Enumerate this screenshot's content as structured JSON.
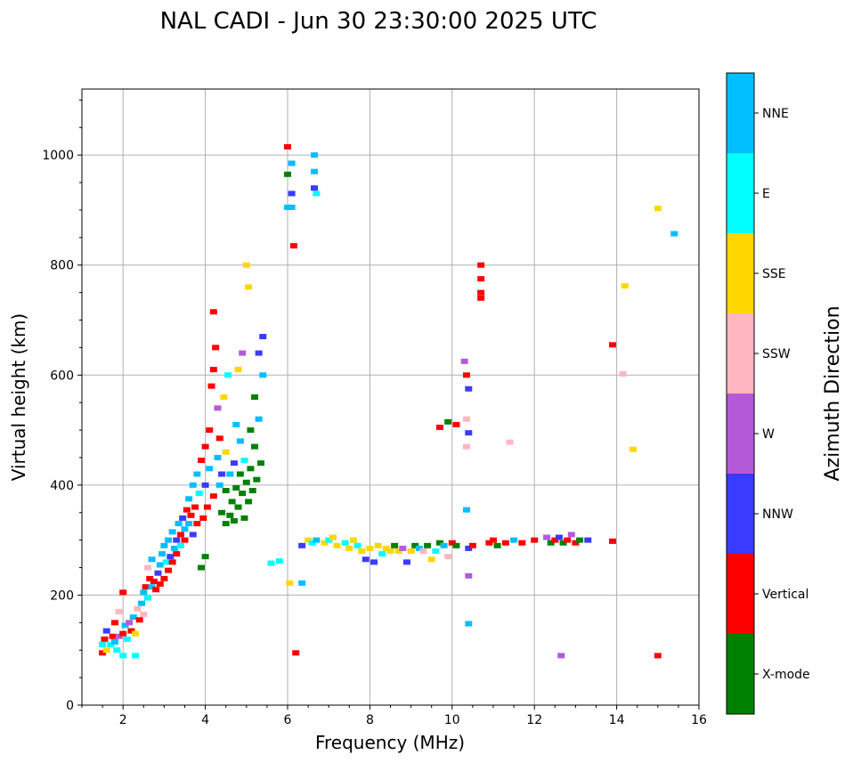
{
  "chart_data": {
    "type": "scatter",
    "title": "NAL CADI - Jun 30 23:30:00 2025 UTC",
    "xlabel": "Frequency (MHz)",
    "ylabel": "Virtual height (km)",
    "xlim": [
      1,
      16
    ],
    "ylim": [
      0,
      1120
    ],
    "xticks": [
      2,
      4,
      6,
      8,
      10,
      12,
      14,
      16
    ],
    "yticks": [
      0,
      200,
      400,
      600,
      800,
      1000
    ],
    "grid": true,
    "colorbar": {
      "title": "Azimuth Direction",
      "categories": [
        {
          "label": "X-mode",
          "color": "#008000"
        },
        {
          "label": "Vertical",
          "color": "#ff0000"
        },
        {
          "label": "NNW",
          "color": "#3b3bff"
        },
        {
          "label": "W",
          "color": "#b45ad8"
        },
        {
          "label": "SSW",
          "color": "#ffb6c1"
        },
        {
          "label": "SSE",
          "color": "#ffd700"
        },
        {
          "label": "E",
          "color": "#00ffff"
        },
        {
          "label": "NNE",
          "color": "#00bfff"
        }
      ]
    },
    "points": [
      {
        "x": 1.5,
        "y": 95,
        "c": "Vertical"
      },
      {
        "x": 1.5,
        "y": 110,
        "c": "E"
      },
      {
        "x": 1.55,
        "y": 120,
        "c": "Vertical"
      },
      {
        "x": 1.6,
        "y": 100,
        "c": "SSE"
      },
      {
        "x": 1.6,
        "y": 135,
        "c": "NNW"
      },
      {
        "x": 1.7,
        "y": 110,
        "c": "E"
      },
      {
        "x": 1.75,
        "y": 125,
        "c": "Vertical"
      },
      {
        "x": 1.8,
        "y": 115,
        "c": "NNE"
      },
      {
        "x": 1.8,
        "y": 150,
        "c": "Vertical"
      },
      {
        "x": 1.85,
        "y": 100,
        "c": "E"
      },
      {
        "x": 1.9,
        "y": 125,
        "c": "W"
      },
      {
        "x": 1.9,
        "y": 170,
        "c": "SSW"
      },
      {
        "x": 2.0,
        "y": 90,
        "c": "E"
      },
      {
        "x": 2.0,
        "y": 130,
        "c": "Vertical"
      },
      {
        "x": 2.0,
        "y": 205,
        "c": "Vertical"
      },
      {
        "x": 2.05,
        "y": 145,
        "c": "NNE"
      },
      {
        "x": 2.1,
        "y": 120,
        "c": "E"
      },
      {
        "x": 2.15,
        "y": 150,
        "c": "W"
      },
      {
        "x": 2.2,
        "y": 135,
        "c": "Vertical"
      },
      {
        "x": 2.25,
        "y": 160,
        "c": "NNE"
      },
      {
        "x": 2.3,
        "y": 130,
        "c": "SSE"
      },
      {
        "x": 2.3,
        "y": 90,
        "c": "E"
      },
      {
        "x": 2.35,
        "y": 175,
        "c": "SSW"
      },
      {
        "x": 2.4,
        "y": 155,
        "c": "Vertical"
      },
      {
        "x": 2.45,
        "y": 185,
        "c": "NNE"
      },
      {
        "x": 2.5,
        "y": 165,
        "c": "SSW"
      },
      {
        "x": 2.5,
        "y": 205,
        "c": "NNE"
      },
      {
        "x": 2.55,
        "y": 215,
        "c": "Vertical"
      },
      {
        "x": 2.6,
        "y": 195,
        "c": "E"
      },
      {
        "x": 2.6,
        "y": 250,
        "c": "SSW"
      },
      {
        "x": 2.65,
        "y": 230,
        "c": "Vertical"
      },
      {
        "x": 2.7,
        "y": 215,
        "c": "NNE"
      },
      {
        "x": 2.7,
        "y": 265,
        "c": "NNE"
      },
      {
        "x": 2.75,
        "y": 225,
        "c": "Vertical"
      },
      {
        "x": 2.8,
        "y": 210,
        "c": "Vertical"
      },
      {
        "x": 2.85,
        "y": 240,
        "c": "NNW"
      },
      {
        "x": 2.9,
        "y": 220,
        "c": "Vertical"
      },
      {
        "x": 2.9,
        "y": 255,
        "c": "NNE"
      },
      {
        "x": 2.95,
        "y": 275,
        "c": "NNE"
      },
      {
        "x": 3.0,
        "y": 230,
        "c": "Vertical"
      },
      {
        "x": 3.0,
        "y": 290,
        "c": "NNE"
      },
      {
        "x": 3.05,
        "y": 260,
        "c": "E"
      },
      {
        "x": 3.1,
        "y": 245,
        "c": "Vertical"
      },
      {
        "x": 3.1,
        "y": 300,
        "c": "NNE"
      },
      {
        "x": 3.15,
        "y": 270,
        "c": "NNW"
      },
      {
        "x": 3.2,
        "y": 260,
        "c": "Vertical"
      },
      {
        "x": 3.2,
        "y": 315,
        "c": "NNE"
      },
      {
        "x": 3.25,
        "y": 285,
        "c": "NNE"
      },
      {
        "x": 3.3,
        "y": 300,
        "c": "NNW"
      },
      {
        "x": 3.3,
        "y": 275,
        "c": "Vertical"
      },
      {
        "x": 3.35,
        "y": 330,
        "c": "NNE"
      },
      {
        "x": 3.4,
        "y": 310,
        "c": "Vertical"
      },
      {
        "x": 3.4,
        "y": 290,
        "c": "E"
      },
      {
        "x": 3.45,
        "y": 340,
        "c": "NNW"
      },
      {
        "x": 3.5,
        "y": 320,
        "c": "NNE"
      },
      {
        "x": 3.5,
        "y": 300,
        "c": "Vertical"
      },
      {
        "x": 3.55,
        "y": 355,
        "c": "Vertical"
      },
      {
        "x": 3.6,
        "y": 330,
        "c": "NNE"
      },
      {
        "x": 3.6,
        "y": 375,
        "c": "NNE"
      },
      {
        "x": 3.65,
        "y": 345,
        "c": "Vertical"
      },
      {
        "x": 3.7,
        "y": 310,
        "c": "NNW"
      },
      {
        "x": 3.7,
        "y": 400,
        "c": "NNE"
      },
      {
        "x": 3.75,
        "y": 360,
        "c": "Vertical"
      },
      {
        "x": 3.8,
        "y": 330,
        "c": "Vertical"
      },
      {
        "x": 3.8,
        "y": 420,
        "c": "NNE"
      },
      {
        "x": 3.85,
        "y": 385,
        "c": "E"
      },
      {
        "x": 3.9,
        "y": 250,
        "c": "X-mode"
      },
      {
        "x": 3.9,
        "y": 445,
        "c": "Vertical"
      },
      {
        "x": 3.95,
        "y": 340,
        "c": "Vertical"
      },
      {
        "x": 4.0,
        "y": 270,
        "c": "X-mode"
      },
      {
        "x": 4.0,
        "y": 470,
        "c": "Vertical"
      },
      {
        "x": 4.0,
        "y": 400,
        "c": "NNW"
      },
      {
        "x": 4.05,
        "y": 360,
        "c": "Vertical"
      },
      {
        "x": 4.1,
        "y": 500,
        "c": "Vertical"
      },
      {
        "x": 4.1,
        "y": 430,
        "c": "NNE"
      },
      {
        "x": 4.15,
        "y": 580,
        "c": "Vertical"
      },
      {
        "x": 4.2,
        "y": 380,
        "c": "Vertical"
      },
      {
        "x": 4.2,
        "y": 610,
        "c": "Vertical"
      },
      {
        "x": 4.25,
        "y": 650,
        "c": "Vertical"
      },
      {
        "x": 4.2,
        "y": 715,
        "c": "Vertical"
      },
      {
        "x": 4.3,
        "y": 450,
        "c": "NNE"
      },
      {
        "x": 4.3,
        "y": 540,
        "c": "W"
      },
      {
        "x": 4.35,
        "y": 400,
        "c": "NNE"
      },
      {
        "x": 4.35,
        "y": 485,
        "c": "Vertical"
      },
      {
        "x": 4.4,
        "y": 350,
        "c": "X-mode"
      },
      {
        "x": 4.4,
        "y": 420,
        "c": "NNW"
      },
      {
        "x": 4.45,
        "y": 560,
        "c": "SSE"
      },
      {
        "x": 4.5,
        "y": 330,
        "c": "X-mode"
      },
      {
        "x": 4.5,
        "y": 390,
        "c": "X-mode"
      },
      {
        "x": 4.5,
        "y": 460,
        "c": "SSE"
      },
      {
        "x": 4.55,
        "y": 600,
        "c": "E"
      },
      {
        "x": 4.6,
        "y": 345,
        "c": "X-mode"
      },
      {
        "x": 4.6,
        "y": 420,
        "c": "NNE"
      },
      {
        "x": 4.65,
        "y": 370,
        "c": "X-mode"
      },
      {
        "x": 4.7,
        "y": 335,
        "c": "X-mode"
      },
      {
        "x": 4.7,
        "y": 440,
        "c": "NNW"
      },
      {
        "x": 4.75,
        "y": 395,
        "c": "X-mode"
      },
      {
        "x": 4.75,
        "y": 510,
        "c": "NNE"
      },
      {
        "x": 4.8,
        "y": 360,
        "c": "X-mode"
      },
      {
        "x": 4.8,
        "y": 610,
        "c": "SSE"
      },
      {
        "x": 4.85,
        "y": 420,
        "c": "X-mode"
      },
      {
        "x": 4.85,
        "y": 480,
        "c": "NNE"
      },
      {
        "x": 4.9,
        "y": 385,
        "c": "X-mode"
      },
      {
        "x": 4.9,
        "y": 640,
        "c": "W"
      },
      {
        "x": 4.95,
        "y": 340,
        "c": "X-mode"
      },
      {
        "x": 4.95,
        "y": 445,
        "c": "E"
      },
      {
        "x": 5.0,
        "y": 405,
        "c": "X-mode"
      },
      {
        "x": 5.0,
        "y": 800,
        "c": "SSE"
      },
      {
        "x": 5.05,
        "y": 370,
        "c": "X-mode"
      },
      {
        "x": 5.05,
        "y": 760,
        "c": "SSE"
      },
      {
        "x": 5.1,
        "y": 430,
        "c": "X-mode"
      },
      {
        "x": 5.1,
        "y": 500,
        "c": "X-mode"
      },
      {
        "x": 5.15,
        "y": 390,
        "c": "X-mode"
      },
      {
        "x": 5.2,
        "y": 470,
        "c": "X-mode"
      },
      {
        "x": 5.2,
        "y": 560,
        "c": "X-mode"
      },
      {
        "x": 5.25,
        "y": 410,
        "c": "X-mode"
      },
      {
        "x": 5.3,
        "y": 520,
        "c": "NNE"
      },
      {
        "x": 5.3,
        "y": 640,
        "c": "NNW"
      },
      {
        "x": 5.35,
        "y": 440,
        "c": "X-mode"
      },
      {
        "x": 5.4,
        "y": 600,
        "c": "NNE"
      },
      {
        "x": 5.4,
        "y": 670,
        "c": "NNW"
      },
      {
        "x": 5.6,
        "y": 258,
        "c": "E"
      },
      {
        "x": 5.8,
        "y": 262,
        "c": "E"
      },
      {
        "x": 6.0,
        "y": 1015,
        "c": "Vertical"
      },
      {
        "x": 6.0,
        "y": 965,
        "c": "X-mode"
      },
      {
        "x": 6.0,
        "y": 905,
        "c": "NNE"
      },
      {
        "x": 6.1,
        "y": 985,
        "c": "NNE"
      },
      {
        "x": 6.1,
        "y": 930,
        "c": "NNW"
      },
      {
        "x": 6.1,
        "y": 905,
        "c": "NNE"
      },
      {
        "x": 6.15,
        "y": 835,
        "c": "Vertical"
      },
      {
        "x": 6.05,
        "y": 222,
        "c": "SSE"
      },
      {
        "x": 6.2,
        "y": 95,
        "c": "Vertical"
      },
      {
        "x": 6.35,
        "y": 222,
        "c": "NNE"
      },
      {
        "x": 6.35,
        "y": 290,
        "c": "NNW"
      },
      {
        "x": 6.5,
        "y": 300,
        "c": "SSE"
      },
      {
        "x": 6.6,
        "y": 295,
        "c": "E"
      },
      {
        "x": 6.65,
        "y": 1000,
        "c": "NNE"
      },
      {
        "x": 6.65,
        "y": 970,
        "c": "NNE"
      },
      {
        "x": 6.65,
        "y": 940,
        "c": "NNW"
      },
      {
        "x": 6.7,
        "y": 930,
        "c": "E"
      },
      {
        "x": 6.7,
        "y": 300,
        "c": "NNE"
      },
      {
        "x": 6.9,
        "y": 295,
        "c": "SSE"
      },
      {
        "x": 7.0,
        "y": 300,
        "c": "E"
      },
      {
        "x": 7.1,
        "y": 305,
        "c": "SSE"
      },
      {
        "x": 7.2,
        "y": 290,
        "c": "SSE"
      },
      {
        "x": 7.4,
        "y": 295,
        "c": "E"
      },
      {
        "x": 7.5,
        "y": 285,
        "c": "SSE"
      },
      {
        "x": 7.6,
        "y": 300,
        "c": "SSE"
      },
      {
        "x": 7.7,
        "y": 290,
        "c": "E"
      },
      {
        "x": 7.8,
        "y": 280,
        "c": "SSE"
      },
      {
        "x": 7.9,
        "y": 265,
        "c": "NNW"
      },
      {
        "x": 8.0,
        "y": 285,
        "c": "SSE"
      },
      {
        "x": 8.1,
        "y": 260,
        "c": "NNW"
      },
      {
        "x": 8.2,
        "y": 290,
        "c": "SSE"
      },
      {
        "x": 8.3,
        "y": 275,
        "c": "E"
      },
      {
        "x": 8.4,
        "y": 285,
        "c": "SSE"
      },
      {
        "x": 8.5,
        "y": 280,
        "c": "SSE"
      },
      {
        "x": 8.6,
        "y": 290,
        "c": "X-mode"
      },
      {
        "x": 8.7,
        "y": 280,
        "c": "SSE"
      },
      {
        "x": 8.8,
        "y": 285,
        "c": "W"
      },
      {
        "x": 8.9,
        "y": 260,
        "c": "NNW"
      },
      {
        "x": 9.0,
        "y": 280,
        "c": "SSE"
      },
      {
        "x": 9.1,
        "y": 290,
        "c": "X-mode"
      },
      {
        "x": 9.2,
        "y": 285,
        "c": "NNE"
      },
      {
        "x": 9.3,
        "y": 280,
        "c": "SSW"
      },
      {
        "x": 9.4,
        "y": 290,
        "c": "X-mode"
      },
      {
        "x": 9.5,
        "y": 265,
        "c": "SSE"
      },
      {
        "x": 9.6,
        "y": 280,
        "c": "E"
      },
      {
        "x": 9.7,
        "y": 295,
        "c": "X-mode"
      },
      {
        "x": 9.8,
        "y": 290,
        "c": "NNE"
      },
      {
        "x": 9.9,
        "y": 270,
        "c": "SSW"
      },
      {
        "x": 10.0,
        "y": 295,
        "c": "Vertical"
      },
      {
        "x": 10.1,
        "y": 290,
        "c": "X-mode"
      },
      {
        "x": 9.7,
        "y": 505,
        "c": "Vertical"
      },
      {
        "x": 9.9,
        "y": 515,
        "c": "X-mode"
      },
      {
        "x": 10.1,
        "y": 510,
        "c": "Vertical"
      },
      {
        "x": 10.3,
        "y": 625,
        "c": "W"
      },
      {
        "x": 10.35,
        "y": 600,
        "c": "Vertical"
      },
      {
        "x": 10.4,
        "y": 575,
        "c": "NNW"
      },
      {
        "x": 10.35,
        "y": 520,
        "c": "SSW"
      },
      {
        "x": 10.4,
        "y": 495,
        "c": "NNW"
      },
      {
        "x": 10.35,
        "y": 470,
        "c": "SSW"
      },
      {
        "x": 10.35,
        "y": 355,
        "c": "NNE"
      },
      {
        "x": 10.4,
        "y": 285,
        "c": "NNW"
      },
      {
        "x": 10.4,
        "y": 235,
        "c": "W"
      },
      {
        "x": 10.4,
        "y": 148,
        "c": "NNE"
      },
      {
        "x": 10.5,
        "y": 290,
        "c": "Vertical"
      },
      {
        "x": 10.7,
        "y": 800,
        "c": "Vertical"
      },
      {
        "x": 10.7,
        "y": 775,
        "c": "Vertical"
      },
      {
        "x": 10.7,
        "y": 750,
        "c": "Vertical"
      },
      {
        "x": 10.7,
        "y": 740,
        "c": "Vertical"
      },
      {
        "x": 10.9,
        "y": 295,
        "c": "Vertical"
      },
      {
        "x": 11.0,
        "y": 300,
        "c": "Vertical"
      },
      {
        "x": 11.1,
        "y": 290,
        "c": "X-mode"
      },
      {
        "x": 11.3,
        "y": 295,
        "c": "Vertical"
      },
      {
        "x": 11.4,
        "y": 478,
        "c": "SSW"
      },
      {
        "x": 11.5,
        "y": 300,
        "c": "NNE"
      },
      {
        "x": 11.7,
        "y": 295,
        "c": "Vertical"
      },
      {
        "x": 12.0,
        "y": 300,
        "c": "Vertical"
      },
      {
        "x": 12.3,
        "y": 305,
        "c": "W"
      },
      {
        "x": 12.4,
        "y": 295,
        "c": "X-mode"
      },
      {
        "x": 12.5,
        "y": 300,
        "c": "Vertical"
      },
      {
        "x": 12.6,
        "y": 305,
        "c": "NNW"
      },
      {
        "x": 12.7,
        "y": 295,
        "c": "X-mode"
      },
      {
        "x": 12.8,
        "y": 300,
        "c": "Vertical"
      },
      {
        "x": 12.9,
        "y": 310,
        "c": "W"
      },
      {
        "x": 13.0,
        "y": 295,
        "c": "Vertical"
      },
      {
        "x": 13.1,
        "y": 300,
        "c": "X-mode"
      },
      {
        "x": 13.3,
        "y": 300,
        "c": "NNW"
      },
      {
        "x": 13.9,
        "y": 298,
        "c": "Vertical"
      },
      {
        "x": 13.9,
        "y": 655,
        "c": "Vertical"
      },
      {
        "x": 12.65,
        "y": 90,
        "c": "W"
      },
      {
        "x": 14.15,
        "y": 602,
        "c": "SSW"
      },
      {
        "x": 14.2,
        "y": 762,
        "c": "SSE"
      },
      {
        "x": 14.4,
        "y": 465,
        "c": "SSE"
      },
      {
        "x": 15.0,
        "y": 90,
        "c": "Vertical"
      },
      {
        "x": 15.0,
        "y": 903,
        "c": "SSE"
      },
      {
        "x": 15.4,
        "y": 857,
        "c": "NNE"
      }
    ]
  }
}
